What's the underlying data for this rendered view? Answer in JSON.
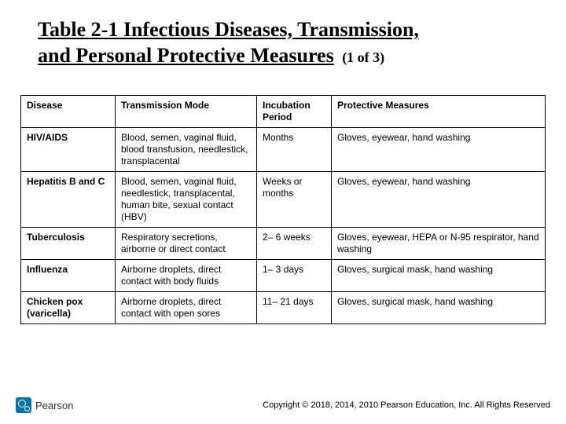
{
  "title_line1": "Table 2-1 Infectious Diseases, Transmission,",
  "title_line2": "and Personal Protective Measures",
  "subtitle": "(1 of 3)",
  "columns": [
    "Disease",
    "Transmission Mode",
    "Incubation Period",
    "Protective Measures"
  ],
  "rows": [
    {
      "disease": "HIV/AIDS",
      "transmission": "Blood, semen, vaginal fluid, blood transfusion, needlestick, transplacental",
      "incubation": "Months",
      "protective": "Gloves, eyewear, hand washing"
    },
    {
      "disease": "Hepatitis B and C",
      "transmission": "Blood, semen, vaginal fluid, needlestick, transplacental, human bite, sexual contact (HBV)",
      "incubation": "Weeks or months",
      "protective": "Gloves, eyewear, hand washing"
    },
    {
      "disease": "Tuberculosis",
      "transmission": "Respiratory secretions, airborne or direct contact",
      "incubation": "2– 6 weeks",
      "protective": "Gloves, eyewear, HEPA or N-95 respirator, hand washing"
    },
    {
      "disease": "Influenza",
      "transmission": "Airborne droplets, direct contact with body fluids",
      "incubation": "1– 3 days",
      "protective": "Gloves, surgical mask, hand washing"
    },
    {
      "disease": "Chicken pox (varicella)",
      "transmission": "Airborne droplets, direct contact with open sores",
      "incubation": "11– 21 days",
      "protective": "Gloves, surgical mask, hand washing"
    }
  ],
  "logo_text": "Pearson",
  "copyright": "Copyright © 2018, 2014, 2010 Pearson Education, Inc. All Rights Reserved",
  "colors": {
    "logo_bg": "#0073a8",
    "border": "#000000",
    "text": "#000000"
  }
}
